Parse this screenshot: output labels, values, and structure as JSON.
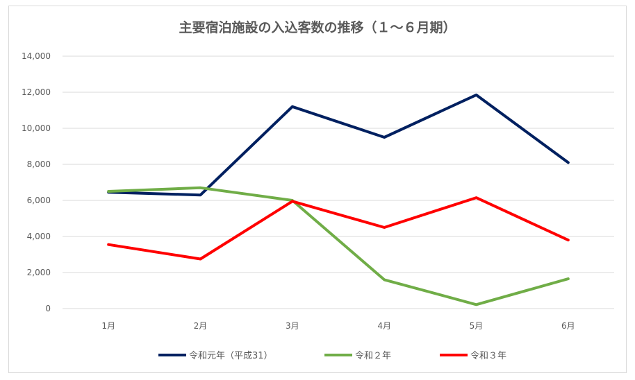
{
  "chart_data": {
    "type": "line",
    "title": "主要宿泊施設の入込客数の推移（１～６月期）",
    "categories": [
      "1月",
      "2月",
      "3月",
      "4月",
      "5月",
      "6月"
    ],
    "ylim": [
      0,
      14000
    ],
    "yticks": [
      "0",
      "2,000",
      "4,000",
      "6,000",
      "8,000",
      "10,000",
      "12,000",
      "14,000"
    ],
    "grid": true,
    "legend_position": "bottom",
    "series": [
      {
        "name": "令和元年（平成31）",
        "color": "#002060",
        "values": [
          6450,
          6300,
          11200,
          9500,
          11850,
          8100
        ]
      },
      {
        "name": "令和２年",
        "color": "#70ad47",
        "values": [
          6500,
          6700,
          6000,
          1600,
          220,
          1650
        ]
      },
      {
        "name": "令和３年",
        "color": "#ff0000",
        "values": [
          3550,
          2750,
          5950,
          4500,
          6150,
          3800
        ]
      }
    ]
  }
}
